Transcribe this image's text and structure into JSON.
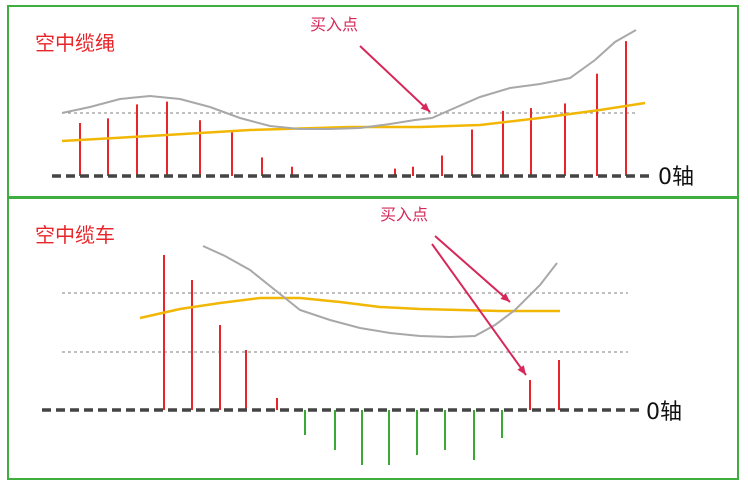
{
  "colors": {
    "border": "#3fae3f",
    "red_bar": "#e8262a",
    "green_bar": "#3aaa35",
    "price_line": "#a8a8a8",
    "ma_line": "#f2b705",
    "zero_axis": "#444444",
    "annotation": "#d6285a",
    "title": "#e8262a"
  },
  "chart_data": [
    {
      "type": "bar",
      "title": "空中缆绳",
      "zero_label": "0轴",
      "annotation": "买入点",
      "ylim": [
        0,
        150
      ],
      "bars": [
        {
          "x": 80,
          "v": 57
        },
        {
          "x": 108,
          "v": 62
        },
        {
          "x": 137,
          "v": 77
        },
        {
          "x": 167,
          "v": 80
        },
        {
          "x": 200,
          "v": 60
        },
        {
          "x": 232,
          "v": 47
        },
        {
          "x": 262,
          "v": 20
        },
        {
          "x": 292,
          "v": 10
        },
        {
          "x": 395,
          "v": 8
        },
        {
          "x": 413,
          "v": 10
        },
        {
          "x": 442,
          "v": 22
        },
        {
          "x": 472,
          "v": 50
        },
        {
          "x": 503,
          "v": 70
        },
        {
          "x": 531,
          "v": 73
        },
        {
          "x": 565,
          "v": 78
        },
        {
          "x": 597,
          "v": 110
        },
        {
          "x": 626,
          "v": 145
        }
      ],
      "price_line": [
        [
          62,
          113
        ],
        [
          90,
          107
        ],
        [
          120,
          99
        ],
        [
          150,
          96
        ],
        [
          180,
          99
        ],
        [
          210,
          107
        ],
        [
          240,
          118
        ],
        [
          270,
          126
        ],
        [
          300,
          129
        ],
        [
          330,
          129
        ],
        [
          360,
          128
        ],
        [
          390,
          124
        ],
        [
          415,
          120
        ],
        [
          432,
          118
        ],
        [
          450,
          110
        ],
        [
          480,
          97
        ],
        [
          510,
          88
        ],
        [
          540,
          84
        ],
        [
          570,
          78
        ],
        [
          595,
          60
        ],
        [
          615,
          42
        ],
        [
          636,
          30
        ]
      ],
      "ma_line": [
        [
          62,
          141
        ],
        [
          150,
          136
        ],
        [
          250,
          130
        ],
        [
          350,
          127
        ],
        [
          420,
          127
        ],
        [
          480,
          125
        ],
        [
          540,
          118
        ],
        [
          600,
          110
        ],
        [
          645,
          103
        ]
      ],
      "ref_line_y": 113
    },
    {
      "type": "bar",
      "title": "空中缆车",
      "zero_label": "0轴",
      "annotation": "买入点",
      "ylim": [
        -60,
        160
      ],
      "bars": [
        {
          "x": 164,
          "v": 155
        },
        {
          "x": 192,
          "v": 130
        },
        {
          "x": 220,
          "v": 85
        },
        {
          "x": 246,
          "v": 60
        },
        {
          "x": 277,
          "v": 12
        },
        {
          "x": 305,
          "v": -25
        },
        {
          "x": 335,
          "v": -40
        },
        {
          "x": 362,
          "v": -55
        },
        {
          "x": 389,
          "v": -55
        },
        {
          "x": 417,
          "v": -45
        },
        {
          "x": 445,
          "v": -40
        },
        {
          "x": 474,
          "v": -50
        },
        {
          "x": 502,
          "v": -28
        },
        {
          "x": 530,
          "v": 30
        },
        {
          "x": 559,
          "v": 50
        }
      ],
      "price_line": [
        [
          203,
          246
        ],
        [
          225,
          256
        ],
        [
          250,
          270
        ],
        [
          275,
          290
        ],
        [
          300,
          310
        ],
        [
          330,
          320
        ],
        [
          360,
          328
        ],
        [
          390,
          333
        ],
        [
          420,
          336
        ],
        [
          450,
          337
        ],
        [
          475,
          336
        ],
        [
          495,
          325
        ],
        [
          515,
          310
        ],
        [
          540,
          285
        ],
        [
          557,
          263
        ]
      ],
      "ma_line": [
        [
          140,
          318
        ],
        [
          180,
          309
        ],
        [
          220,
          303
        ],
        [
          260,
          298
        ],
        [
          300,
          298
        ],
        [
          340,
          302
        ],
        [
          380,
          307
        ],
        [
          420,
          309
        ],
        [
          460,
          310
        ],
        [
          500,
          311
        ],
        [
          560,
          311
        ]
      ],
      "ref_line_y1": 293,
      "ref_line_y2": 352
    }
  ]
}
